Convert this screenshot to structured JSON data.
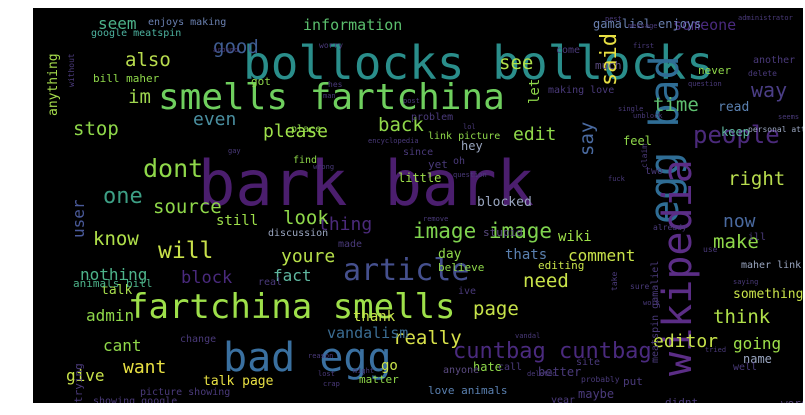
{
  "palette": {
    "purple": "#5a2a78",
    "indigo": "#3f4a8a",
    "blue": "#3b6d93",
    "teal": "#2a8e8b",
    "green": "#3fae6f",
    "lime": "#8fd14a",
    "yellow": "#f2e13a",
    "violet": "#462f7a",
    "dark": "#3a1f55"
  },
  "words": [
    {
      "text": "bark bark",
      "color": "#4b1e6e"
    },
    {
      "text": "bollocks bollocks",
      "color": "#2a8e8b"
    },
    {
      "text": "smells fartchina",
      "color": "#6fcf5e"
    },
    {
      "text": "fartchina smells",
      "color": "#9ee04a"
    },
    {
      "text": "bad egg",
      "color": "#3a70a0"
    },
    {
      "text": "egg bad",
      "color": "#2f6d95"
    },
    {
      "text": "wikipedia",
      "color": "#5b2d86"
    },
    {
      "text": "article",
      "color": "#45508e"
    },
    {
      "text": "image image",
      "color": "#7fd34f"
    },
    {
      "text": "cuntbag cuntbag",
      "color": "#4a2a7e"
    },
    {
      "text": "people",
      "color": "#4b2a7b"
    },
    {
      "text": "dont",
      "color": "#8fd84a"
    },
    {
      "text": "one",
      "color": "#3d9f85"
    },
    {
      "text": "will",
      "color": "#c8e04a"
    },
    {
      "text": "source",
      "color": "#8fd84a"
    },
    {
      "text": "page",
      "color": "#c7e34a"
    },
    {
      "text": "said",
      "color": "#e8e043"
    },
    {
      "text": "good",
      "color": "#3f5d92"
    },
    {
      "text": "also",
      "color": "#b9dd4e"
    },
    {
      "text": "im",
      "color": "#9fd64f"
    },
    {
      "text": "stop",
      "color": "#8fd84a"
    },
    {
      "text": "even",
      "color": "#4a8fa0"
    },
    {
      "text": "please",
      "color": "#9ee04a"
    },
    {
      "text": "back",
      "color": "#8fd84a"
    },
    {
      "text": "edit",
      "color": "#8fd84a"
    },
    {
      "text": "say",
      "color": "#4a6aa0"
    },
    {
      "text": "time",
      "color": "#5fc070"
    },
    {
      "text": "way",
      "color": "#4b3e86"
    },
    {
      "text": "see",
      "color": "#b0e04a"
    },
    {
      "text": "seem",
      "color": "#4db38a"
    },
    {
      "text": "information",
      "color": "#5bbf6e"
    },
    {
      "text": "someone",
      "color": "#4a2a7e"
    },
    {
      "text": "gamaliel enjoys",
      "color": "#6a80b0"
    },
    {
      "text": "enjoys making",
      "color": "#6a80b0"
    },
    {
      "text": "google meatspin",
      "color": "#4db3a0"
    },
    {
      "text": "anything",
      "color": "#a6dc4c"
    },
    {
      "text": "let",
      "color": "#8fd84a"
    },
    {
      "text": "user",
      "color": "#4a5a9a"
    },
    {
      "text": "thing",
      "color": "#4b2a7b"
    },
    {
      "text": "know",
      "color": "#b0e04a"
    },
    {
      "text": "look",
      "color": "#8fd84a"
    },
    {
      "text": "youre",
      "color": "#b7e04a"
    },
    {
      "text": "block",
      "color": "#4a2a7e"
    },
    {
      "text": "fact",
      "color": "#5fb7a0"
    },
    {
      "text": "nothing",
      "color": "#4db38a"
    },
    {
      "text": "need",
      "color": "#c9e34a"
    },
    {
      "text": "thats",
      "color": "#5a80b0"
    },
    {
      "text": "comment",
      "color": "#c9e34a"
    },
    {
      "text": "make",
      "color": "#8fd84a"
    },
    {
      "text": "now",
      "color": "#4a6aa0"
    },
    {
      "text": "right",
      "color": "#b9dd4e"
    },
    {
      "text": "think",
      "color": "#b0e04a"
    },
    {
      "text": "going",
      "color": "#9ee04a"
    },
    {
      "text": "editor",
      "color": "#c7e34a"
    },
    {
      "text": "really",
      "color": "#d8e24a"
    },
    {
      "text": "vandalism",
      "color": "#3b6d93"
    },
    {
      "text": "admin",
      "color": "#8fd84a"
    },
    {
      "text": "cant",
      "color": "#8fd84a"
    },
    {
      "text": "want",
      "color": "#e8e043"
    },
    {
      "text": "give",
      "color": "#c9e34a"
    },
    {
      "text": "talk",
      "color": "#a6dc4c"
    },
    {
      "text": "talk page",
      "color": "#e8e043"
    },
    {
      "text": "thank",
      "color": "#c9e34a"
    },
    {
      "text": "go",
      "color": "#c9e34a"
    },
    {
      "text": "love animals",
      "color": "#5a80b0"
    },
    {
      "text": "something",
      "color": "#c9e34a"
    },
    {
      "text": "name",
      "color": "#9aa6c0"
    },
    {
      "text": "still",
      "color": "#9ee04a"
    },
    {
      "text": "day",
      "color": "#8fd84a"
    },
    {
      "text": "wiki",
      "color": "#9ee04a"
    },
    {
      "text": "blocked",
      "color": "#9aa6c0"
    },
    {
      "text": "little",
      "color": "#9ee04a"
    },
    {
      "text": "link picture",
      "color": "#8fd84a"
    },
    {
      "text": "read",
      "color": "#5a80b0"
    },
    {
      "text": "keep",
      "color": "#5fb7a0"
    },
    {
      "text": "feel",
      "color": "#8fd84a"
    },
    {
      "text": "believe",
      "color": "#8fd84a"
    },
    {
      "text": "discussion",
      "color": "#9aa6c0"
    },
    {
      "text": "animals bill",
      "color": "#4db38a"
    },
    {
      "text": "bill maher",
      "color": "#8fd84a"
    },
    {
      "text": "hate",
      "color": "#8fd84a"
    },
    {
      "text": "stupid",
      "color": "#5a4a80"
    },
    {
      "text": "editing",
      "color": "#c9e34a"
    },
    {
      "text": "picture showing",
      "color": "#4a3a7a"
    },
    {
      "text": "showing google",
      "color": "#4a3a7a"
    },
    {
      "text": "making love",
      "color": "#4a3a7a"
    },
    {
      "text": "maybe",
      "color": "#4a3a7a"
    },
    {
      "text": "didnt",
      "color": "#4a3a7a"
    },
    {
      "text": "never",
      "color": "#8fd84a"
    },
    {
      "text": "much",
      "color": "#5a4a80"
    },
    {
      "text": "word",
      "color": "#5a4a80"
    },
    {
      "text": "another",
      "color": "#4a3a7a"
    },
    {
      "text": "better",
      "color": "#4a3a7a"
    },
    {
      "text": "anyone",
      "color": "#5a4a80"
    },
    {
      "text": "year",
      "color": "#4a3a7a"
    },
    {
      "text": "trying",
      "color": "#4a3a7a"
    },
    {
      "text": "put",
      "color": "#4a3a7a"
    },
    {
      "text": "got",
      "color": "#8fd84a"
    },
    {
      "text": "place",
      "color": "#8fd84a"
    },
    {
      "text": "find",
      "color": "#8fd84a"
    },
    {
      "text": "since",
      "color": "#4a3a7a"
    },
    {
      "text": "hey",
      "color": "#9aa6c0"
    },
    {
      "text": "yet",
      "color": "#4a3a7a"
    },
    {
      "text": "oh",
      "color": "#4a3a7a"
    },
    {
      "text": "ill",
      "color": "#4a3a7a"
    },
    {
      "text": "two",
      "color": "#4a3a7a"
    },
    {
      "text": "call",
      "color": "#4a3a7a"
    },
    {
      "text": "site",
      "color": "#4a3a7a"
    },
    {
      "text": "made",
      "color": "#4a3a7a"
    },
    {
      "text": "real",
      "color": "#4a3a7a"
    },
    {
      "text": "ive",
      "color": "#4a3a7a"
    },
    {
      "text": "matter",
      "color": "#8fd84a"
    },
    {
      "text": "change",
      "color": "#4a3a7a"
    },
    {
      "text": "come",
      "color": "#4a3a7a"
    },
    {
      "text": "problem",
      "color": "#4a3a7a"
    },
    {
      "text": "meatspin gamaliel",
      "color": "#4a3a7a"
    },
    {
      "text": "maher link",
      "color": "#9aa6c0"
    },
    {
      "text": "personal attack",
      "color": "#9aa6c0"
    },
    {
      "text": "already",
      "color": "#4a3a7a"
    },
    {
      "text": "use",
      "color": "#4a3a7a"
    },
    {
      "text": "well",
      "color": "#4a3a7a"
    },
    {
      "text": "probably",
      "color": "#4a3a7a"
    },
    {
      "text": "without",
      "color": "#4a3a7a"
    },
    {
      "text": "worry",
      "color": "#4a3a7a"
    },
    {
      "text": "delete",
      "color": "#4a3a7a"
    },
    {
      "text": "hes",
      "color": "#4a3a7a"
    },
    {
      "text": "pest",
      "color": "#4a3a7a"
    },
    {
      "text": "wrong",
      "color": "#4a3a7a"
    },
    {
      "text": "claim",
      "color": "#4a3a7a"
    },
    {
      "text": "take",
      "color": "#4a3a7a"
    },
    {
      "text": "sure",
      "color": "#4a3a7a"
    },
    {
      "text": "deleted",
      "color": "#4a3a7a"
    },
    {
      "text": "vandal",
      "color": "#4a3a7a"
    },
    {
      "text": "might",
      "color": "#4a3a7a"
    },
    {
      "text": "crap",
      "color": "#4a3a7a"
    },
    {
      "text": "lost",
      "color": "#4a3a7a"
    },
    {
      "text": "fuck",
      "color": "#4a3a7a"
    },
    {
      "text": "man",
      "color": "#4a3a7a"
    },
    {
      "text": "saying",
      "color": "#4a3a7a"
    },
    {
      "text": "remove",
      "color": "#4a3a7a"
    },
    {
      "text": "around",
      "color": "#4a3a7a"
    },
    {
      "text": "encyclopedia",
      "color": "#4a3a7a"
    },
    {
      "text": "single",
      "color": "#4a3a7a"
    },
    {
      "text": "question",
      "color": "#4a3a7a"
    },
    {
      "text": "administrator",
      "color": "#4a3a7a"
    },
    {
      "text": "message",
      "color": "#4a3a7a"
    },
    {
      "text": "first",
      "color": "#4a3a7a"
    },
    {
      "text": "unblock",
      "color": "#4a3a7a"
    },
    {
      "text": "seems",
      "color": "#4a3a7a"
    },
    {
      "text": "reason",
      "color": "#4a3a7a"
    },
    {
      "text": "post",
      "color": "#4a3a7a"
    },
    {
      "text": "gay",
      "color": "#4a3a7a"
    },
    {
      "text": "question",
      "color": "#4a3a7a"
    },
    {
      "text": "work",
      "color": "#4a3a7a"
    },
    {
      "text": "tried",
      "color": "#4a3a7a"
    },
    {
      "text": "lol",
      "color": "#4a3a7a"
    }
  ]
}
